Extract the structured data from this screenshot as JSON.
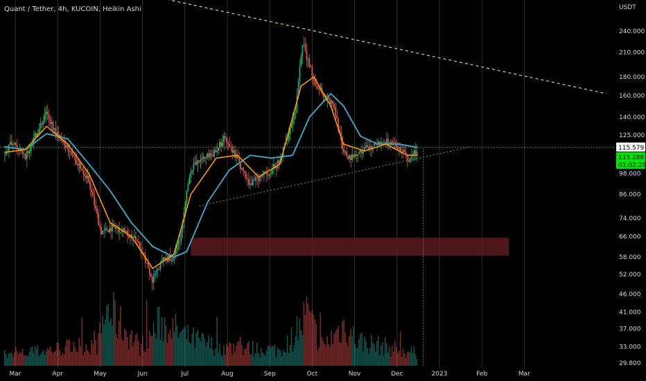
{
  "header": {
    "title": "Quant / Tether, 4h, KUCOIN, Heikin Ashi",
    "currency": "USDT"
  },
  "colors": {
    "background": "#000000",
    "bull": "#26a69a",
    "bull_bright": "#2ecc40",
    "bear": "#ef5350",
    "ema_fast": "#ff9800",
    "ema_slow": "#3fa0b8",
    "resistance_line": "#e8d37a",
    "support_line": "#4caf50",
    "price_line": "#4caf50",
    "zone": "#5c1a1f",
    "price_badge_bg": "#00e600",
    "axis_text": "#d1d4dc",
    "grid": "#3a3a3a"
  },
  "badges": {
    "last_close": "115.579",
    "price": "115.286",
    "countdown": "01:02:29"
  },
  "chart_data": {
    "type": "candlestick",
    "title": "Quant / Tether, 4h, KUCOIN, Heikin Ashi",
    "y_axis_label": "USDT",
    "y_scale": "log",
    "y_ticks": [
      "240.000",
      "210.000",
      "180.000",
      "160.000",
      "140.000",
      "125.000",
      "98.000",
      "86.000",
      "74.000",
      "66.000",
      "58.000",
      "52.000",
      "46.000",
      "41.000",
      "37.000",
      "33.000",
      "29.800"
    ],
    "x_ticks": [
      "Mar",
      "Apr",
      "May",
      "Jun",
      "Jul",
      "Aug",
      "Sep",
      "Oct",
      "Nov",
      "Dec",
      "2023",
      "Feb",
      "Mar"
    ],
    "price_path": [
      [
        0,
        110
      ],
      [
        0.2,
        120
      ],
      [
        0.5,
        108
      ],
      [
        0.8,
        128
      ],
      [
        1.0,
        142
      ],
      [
        1.3,
        125
      ],
      [
        1.6,
        112
      ],
      [
        2.0,
        95
      ],
      [
        2.3,
        68
      ],
      [
        2.6,
        70
      ],
      [
        2.9,
        68
      ],
      [
        3.2,
        63
      ],
      [
        3.5,
        50
      ],
      [
        3.8,
        58
      ],
      [
        4.0,
        57
      ],
      [
        4.2,
        68
      ],
      [
        4.4,
        100
      ],
      [
        4.7,
        108
      ],
      [
        5.0,
        112
      ],
      [
        5.2,
        122
      ],
      [
        5.5,
        108
      ],
      [
        5.8,
        92
      ],
      [
        6.2,
        98
      ],
      [
        6.5,
        105
      ],
      [
        6.9,
        148
      ],
      [
        7.05,
        225
      ],
      [
        7.3,
        178
      ],
      [
        7.6,
        158
      ],
      [
        7.8,
        150
      ],
      [
        8.0,
        112
      ],
      [
        8.2,
        108
      ],
      [
        8.5,
        114
      ],
      [
        8.8,
        118
      ],
      [
        9.1,
        120
      ],
      [
        9.4,
        113
      ],
      [
        9.55,
        106
      ],
      [
        9.75,
        114
      ]
    ],
    "volume_profile": [
      [
        0,
        0.15
      ],
      [
        1.0,
        0.25
      ],
      [
        2.2,
        0.35
      ],
      [
        2.4,
        0.9
      ],
      [
        3.2,
        0.3
      ],
      [
        3.7,
        0.7
      ],
      [
        4.3,
        0.45
      ],
      [
        5.0,
        0.3
      ],
      [
        6.5,
        0.25
      ],
      [
        7.0,
        0.6
      ],
      [
        7.1,
        0.85
      ],
      [
        7.5,
        0.3
      ],
      [
        8.0,
        0.65
      ],
      [
        8.3,
        0.4
      ],
      [
        9.0,
        0.3
      ],
      [
        9.7,
        0.2
      ]
    ],
    "ema_fast": [
      [
        0,
        112
      ],
      [
        0.5,
        114
      ],
      [
        1.0,
        132
      ],
      [
        1.5,
        118
      ],
      [
        2.0,
        98
      ],
      [
        2.5,
        72
      ],
      [
        3.0,
        66
      ],
      [
        3.5,
        54
      ],
      [
        4.0,
        59
      ],
      [
        4.4,
        86
      ],
      [
        5.0,
        108
      ],
      [
        5.5,
        110
      ],
      [
        6.0,
        96
      ],
      [
        6.5,
        104
      ],
      [
        7.0,
        170
      ],
      [
        7.3,
        180
      ],
      [
        7.7,
        150
      ],
      [
        8.0,
        118
      ],
      [
        8.5,
        113
      ],
      [
        9.0,
        118
      ],
      [
        9.5,
        110
      ],
      [
        9.75,
        110
      ]
    ],
    "ema_slow": [
      [
        0,
        116
      ],
      [
        0.5,
        114
      ],
      [
        1.0,
        126
      ],
      [
        1.5,
        122
      ],
      [
        2.0,
        104
      ],
      [
        2.5,
        88
      ],
      [
        3.0,
        72
      ],
      [
        3.5,
        62
      ],
      [
        4.0,
        58
      ],
      [
        4.3,
        60
      ],
      [
        4.8,
        82
      ],
      [
        5.3,
        100
      ],
      [
        5.8,
        110
      ],
      [
        6.3,
        108
      ],
      [
        6.8,
        110
      ],
      [
        7.2,
        140
      ],
      [
        7.7,
        162
      ],
      [
        8.0,
        150
      ],
      [
        8.4,
        124
      ],
      [
        8.8,
        118
      ],
      [
        9.3,
        118
      ],
      [
        9.75,
        115.5
      ]
    ],
    "resistance_line": {
      "from": [
        2.3,
        320
      ],
      "to": [
        14.2,
        162
      ]
    },
    "support_line": {
      "from": [
        4.6,
        80
      ],
      "to": [
        11.0,
        116
      ]
    },
    "horizontal_level": 115.579,
    "demand_zone": {
      "from_x": 4.4,
      "to_x": 11.9,
      "low": 58.5,
      "high": 65.5
    },
    "last_price": 115.286
  }
}
